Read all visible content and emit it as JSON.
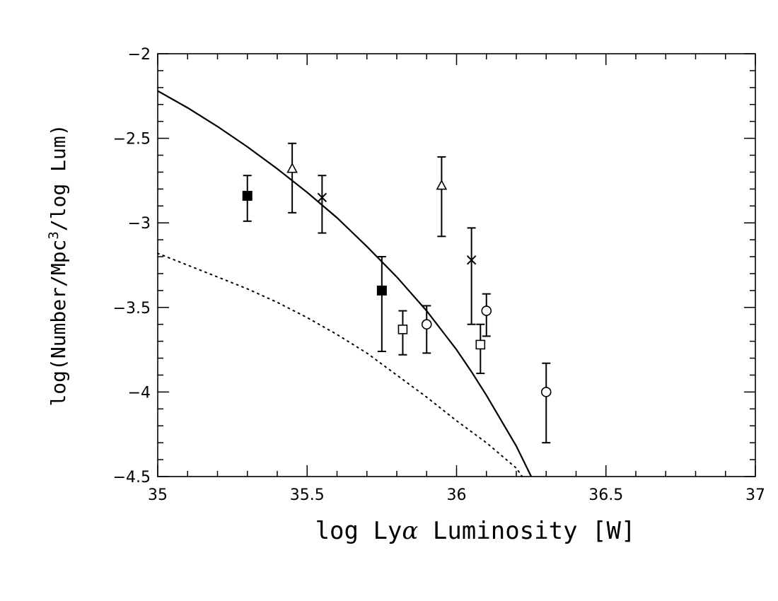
{
  "chart_data": {
    "type": "scatter",
    "title": "",
    "xlabel": {
      "prefix": "log Ly",
      "greek": "α",
      "suffix": " Luminosity [W]"
    },
    "ylabel": {
      "prefix": "log(Number/Mpc",
      "sup": "3",
      "suffix": "/log Lum)"
    },
    "xlim": [
      35,
      37
    ],
    "ylim": [
      -4.5,
      -2
    ],
    "x_ticks": [
      35,
      35.5,
      36,
      36.5,
      37
    ],
    "x_tick_labels": [
      "35",
      "35.5",
      "36",
      "36.5",
      "37"
    ],
    "y_ticks": [
      -2,
      -2.5,
      -3,
      -3.5,
      -4,
      -4.5
    ],
    "y_tick_labels": [
      "−2",
      "−2.5",
      "−3",
      "−3.5",
      "−4",
      "−4.5"
    ],
    "grid": false,
    "series": [
      {
        "marker": "filled-square",
        "points": [
          {
            "x": 35.3,
            "y": -2.84,
            "ylo": -2.99,
            "yhi": -2.72
          },
          {
            "x": 35.75,
            "y": -3.4,
            "ylo": -3.76,
            "yhi": -3.2
          }
        ]
      },
      {
        "marker": "triangle",
        "points": [
          {
            "x": 35.45,
            "y": -2.68,
            "ylo": -2.94,
            "yhi": -2.53
          },
          {
            "x": 35.95,
            "y": -2.78,
            "ylo": -3.08,
            "yhi": -2.61
          }
        ]
      },
      {
        "marker": "cross",
        "points": [
          {
            "x": 35.55,
            "y": -2.85,
            "ylo": -3.06,
            "yhi": -2.72
          },
          {
            "x": 36.05,
            "y": -3.22,
            "ylo": -3.6,
            "yhi": -3.03
          }
        ]
      },
      {
        "marker": "open-square",
        "points": [
          {
            "x": 35.82,
            "y": -3.63,
            "ylo": -3.78,
            "yhi": -3.52
          },
          {
            "x": 36.08,
            "y": -3.72,
            "ylo": -3.89,
            "yhi": -3.6
          }
        ]
      },
      {
        "marker": "circle",
        "points": [
          {
            "x": 35.9,
            "y": -3.6,
            "ylo": -3.77,
            "yhi": -3.49
          },
          {
            "x": 36.1,
            "y": -3.52,
            "ylo": -3.67,
            "yhi": -3.42
          },
          {
            "x": 36.3,
            "y": -4.0,
            "ylo": -4.3,
            "yhi": -3.83
          }
        ]
      }
    ],
    "curves": [
      {
        "style": "solid",
        "points": [
          [
            35.0,
            -2.22
          ],
          [
            35.1,
            -2.32
          ],
          [
            35.2,
            -2.43
          ],
          [
            35.3,
            -2.55
          ],
          [
            35.4,
            -2.68
          ],
          [
            35.5,
            -2.82
          ],
          [
            35.6,
            -2.97
          ],
          [
            35.7,
            -3.14
          ],
          [
            35.8,
            -3.32
          ],
          [
            35.9,
            -3.52
          ],
          [
            36.0,
            -3.75
          ],
          [
            36.05,
            -3.88
          ],
          [
            36.1,
            -4.02
          ],
          [
            36.15,
            -4.17
          ],
          [
            36.2,
            -4.32
          ],
          [
            36.25,
            -4.5
          ]
        ]
      },
      {
        "style": "dotted",
        "points": [
          [
            35.0,
            -3.18
          ],
          [
            35.1,
            -3.25
          ],
          [
            35.2,
            -3.32
          ],
          [
            35.3,
            -3.39
          ],
          [
            35.4,
            -3.47
          ],
          [
            35.5,
            -3.56
          ],
          [
            35.6,
            -3.66
          ],
          [
            35.7,
            -3.77
          ],
          [
            35.8,
            -3.9
          ],
          [
            35.9,
            -4.03
          ],
          [
            36.0,
            -4.17
          ],
          [
            36.1,
            -4.3
          ],
          [
            36.2,
            -4.45
          ],
          [
            36.22,
            -4.5
          ]
        ]
      }
    ]
  }
}
